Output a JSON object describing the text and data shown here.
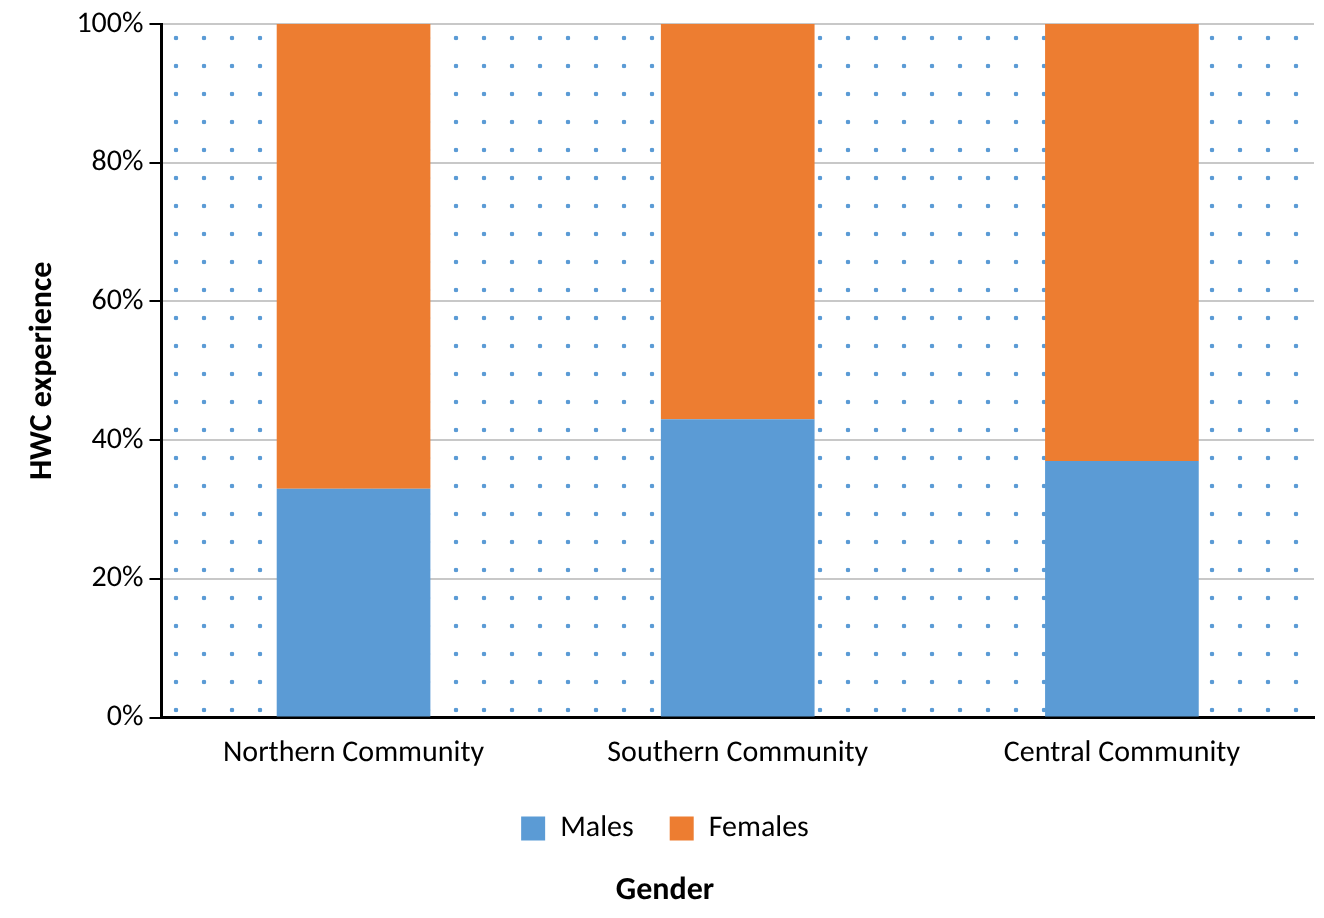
{
  "chart_data": {
    "type": "bar",
    "stacked": true,
    "xlabel": "Gender",
    "ylabel": "HWC experience",
    "categories": [
      "Northern Community",
      "Southern Community",
      "Central Community"
    ],
    "series": [
      {
        "name": "Males",
        "color": "#5b9bd5",
        "values": [
          33,
          43,
          37
        ]
      },
      {
        "name": "Females",
        "color": "#ed7d31",
        "values": [
          67,
          57,
          63
        ]
      }
    ],
    "ylim": [
      0,
      100
    ],
    "yticks": [
      {
        "value": 0,
        "label": "0%"
      },
      {
        "value": 20,
        "label": "20%"
      },
      {
        "value": 40,
        "label": "40%"
      },
      {
        "value": 60,
        "label": "60%"
      },
      {
        "value": 80,
        "label": "80%"
      },
      {
        "value": 100,
        "label": "100%"
      }
    ],
    "grid": "y",
    "legend": "bottom"
  }
}
